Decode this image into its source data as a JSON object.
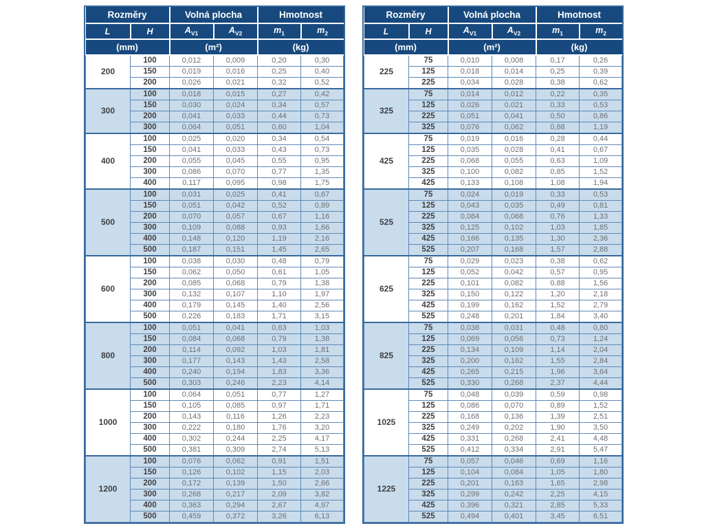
{
  "colors": {
    "header_bg": "#17497e",
    "outer_border": "#36689e",
    "row_border": "#5c87b4",
    "band_bg": "#c9dcec",
    "value_text": "#6d6e71",
    "bold_text": "#3f4042"
  },
  "header": {
    "groups": [
      {
        "label": "Rozměry",
        "unit": "(mm)"
      },
      {
        "label": "Volná plocha",
        "unit": "(m²)"
      },
      {
        "label": "Hmotnost",
        "unit": "(kg)"
      }
    ],
    "columns": [
      {
        "base": "L",
        "sub": ""
      },
      {
        "base": "H",
        "sub": ""
      },
      {
        "base": "A",
        "sub": "V1"
      },
      {
        "base": "A",
        "sub": "V2"
      },
      {
        "base": "m",
        "sub": "1"
      },
      {
        "base": "m",
        "sub": "2"
      }
    ]
  },
  "tables": [
    {
      "name": "left",
      "groups": [
        {
          "L": "200",
          "rows": [
            [
              "100",
              "0,012",
              "0,009",
              "0,20",
              "0,30"
            ],
            [
              "150",
              "0,019",
              "0,016",
              "0,25",
              "0,40"
            ],
            [
              "200",
              "0,026",
              "0,021",
              "0,32",
              "0,52"
            ]
          ]
        },
        {
          "L": "300",
          "rows": [
            [
              "100",
              "0,018",
              "0,015",
              "0,27",
              "0,42"
            ],
            [
              "150",
              "0,030",
              "0,024",
              "0,34",
              "0,57"
            ],
            [
              "200",
              "0,041",
              "0,033",
              "0,44",
              "0,73"
            ],
            [
              "300",
              "0,064",
              "0,051",
              "0,60",
              "1,04"
            ]
          ]
        },
        {
          "L": "400",
          "rows": [
            [
              "100",
              "0,025",
              "0,020",
              "0,34",
              "0,54"
            ],
            [
              "150",
              "0,041",
              "0,033",
              "0,43",
              "0,73"
            ],
            [
              "200",
              "0,055",
              "0,045",
              "0,55",
              "0,95"
            ],
            [
              "300",
              "0,086",
              "0,070",
              "0,77",
              "1,35"
            ],
            [
              "400",
              "0,117",
              "0,095",
              "0,98",
              "1,75"
            ]
          ]
        },
        {
          "L": "500",
          "rows": [
            [
              "100",
              "0,031",
              "0,025",
              "0,41",
              "0,67"
            ],
            [
              "150",
              "0,051",
              "0,042",
              "0,52",
              "0,89"
            ],
            [
              "200",
              "0,070",
              "0,057",
              "0,67",
              "1,16"
            ],
            [
              "300",
              "0,109",
              "0,088",
              "0,93",
              "1,66"
            ],
            [
              "400",
              "0,148",
              "0,120",
              "1,19",
              "2,16"
            ],
            [
              "500",
              "0,187",
              "0,151",
              "1,45",
              "2,65"
            ]
          ]
        },
        {
          "L": "600",
          "rows": [
            [
              "100",
              "0,038",
              "0,030",
              "0,48",
              "0,79"
            ],
            [
              "150",
              "0,062",
              "0,050",
              "0,61",
              "1,05"
            ],
            [
              "200",
              "0,085",
              "0,068",
              "0,79",
              "1,38"
            ],
            [
              "300",
              "0,132",
              "0,107",
              "1,10",
              "1,97"
            ],
            [
              "400",
              "0,179",
              "0,145",
              "1,40",
              "2,56"
            ],
            [
              "500",
              "0,226",
              "0,183",
              "1,71",
              "3,15"
            ]
          ]
        },
        {
          "L": "800",
          "rows": [
            [
              "100",
              "0,051",
              "0,041",
              "0,63",
              "1,03"
            ],
            [
              "150",
              "0,084",
              "0,068",
              "0,79",
              "1,38"
            ],
            [
              "200",
              "0,114",
              "0,092",
              "1,03",
              "1,81"
            ],
            [
              "300",
              "0,177",
              "0,143",
              "1,43",
              "2,58"
            ],
            [
              "400",
              "0,240",
              "0,194",
              "1,83",
              "3,36"
            ],
            [
              "500",
              "0,303",
              "0,246",
              "2,23",
              "4,14"
            ]
          ]
        },
        {
          "L": "1000",
          "rows": [
            [
              "100",
              "0,064",
              "0,051",
              "0,77",
              "1,27"
            ],
            [
              "150",
              "0,105",
              "0,085",
              "0,97",
              "1,71"
            ],
            [
              "200",
              "0,143",
              "0,116",
              "1,26",
              "2,23"
            ],
            [
              "300",
              "0,222",
              "0,180",
              "1,76",
              "3,20"
            ],
            [
              "400",
              "0,302",
              "0,244",
              "2,25",
              "4,17"
            ],
            [
              "500",
              "0,381",
              "0,309",
              "2,74",
              "5,13"
            ]
          ]
        },
        {
          "L": "1200",
          "rows": [
            [
              "100",
              "0,076",
              "0,062",
              "0,91",
              "1,51"
            ],
            [
              "150",
              "0,126",
              "0,102",
              "1,15",
              "2,03"
            ],
            [
              "200",
              "0,172",
              "0,139",
              "1,50",
              "2,66"
            ],
            [
              "300",
              "0,268",
              "0,217",
              "2,09",
              "3,82"
            ],
            [
              "400",
              "0,363",
              "0,294",
              "2,67",
              "4,97"
            ],
            [
              "500",
              "0,459",
              "0,372",
              "3,26",
              "6,13"
            ]
          ]
        }
      ]
    },
    {
      "name": "right",
      "groups": [
        {
          "L": "225",
          "rows": [
            [
              "75",
              "0,010",
              "0,008",
              "0,17",
              "0,26"
            ],
            [
              "125",
              "0,018",
              "0,014",
              "0,25",
              "0,39"
            ],
            [
              "225",
              "0,034",
              "0,028",
              "0,38",
              "0,62"
            ]
          ]
        },
        {
          "L": "325",
          "rows": [
            [
              "75",
              "0,014",
              "0,012",
              "0,22",
              "0,35"
            ],
            [
              "125",
              "0,026",
              "0,021",
              "0,33",
              "0,53"
            ],
            [
              "225",
              "0,051",
              "0,041",
              "0,50",
              "0,86"
            ],
            [
              "325",
              "0,076",
              "0,062",
              "0,68",
              "1,19"
            ]
          ]
        },
        {
          "L": "425",
          "rows": [
            [
              "75",
              "0,019",
              "0,016",
              "0,28",
              "0,44"
            ],
            [
              "125",
              "0,035",
              "0,028",
              "0,41",
              "0,67"
            ],
            [
              "225",
              "0,068",
              "0,055",
              "0,63",
              "1,09"
            ],
            [
              "325",
              "0,100",
              "0,082",
              "0,85",
              "1,52"
            ],
            [
              "425",
              "0,133",
              "0,108",
              "1,08",
              "1,94"
            ]
          ]
        },
        {
          "L": "525",
          "rows": [
            [
              "75",
              "0,024",
              "0,019",
              "0,33",
              "0,53"
            ],
            [
              "125",
              "0,043",
              "0,035",
              "0,49",
              "0,81"
            ],
            [
              "225",
              "0,084",
              "0,068",
              "0,76",
              "1,33"
            ],
            [
              "325",
              "0,125",
              "0,102",
              "1,03",
              "1,85"
            ],
            [
              "425",
              "0,166",
              "0,135",
              "1,30",
              "2,36"
            ],
            [
              "525",
              "0,207",
              "0,168",
              "1,57",
              "2,88"
            ]
          ]
        },
        {
          "L": "625",
          "rows": [
            [
              "75",
              "0,029",
              "0,023",
              "0,38",
              "0,62"
            ],
            [
              "125",
              "0,052",
              "0,042",
              "0,57",
              "0,95"
            ],
            [
              "225",
              "0,101",
              "0,082",
              "0,88",
              "1,56"
            ],
            [
              "325",
              "0,150",
              "0,122",
              "1,20",
              "2,18"
            ],
            [
              "425",
              "0,199",
              "0,162",
              "1,52",
              "2,79"
            ],
            [
              "525",
              "0,248",
              "0,201",
              "1,84",
              "3,40"
            ]
          ]
        },
        {
          "L": "825",
          "rows": [
            [
              "75",
              "0,038",
              "0,031",
              "0,48",
              "0,80"
            ],
            [
              "125",
              "0,069",
              "0,056",
              "0,73",
              "1,24"
            ],
            [
              "225",
              "0,134",
              "0,109",
              "1,14",
              "2,04"
            ],
            [
              "325",
              "0,200",
              "0,162",
              "1,55",
              "2,84"
            ],
            [
              "425",
              "0,265",
              "0,215",
              "1,96",
              "3,64"
            ],
            [
              "525",
              "0,330",
              "0,268",
              "2,37",
              "4,44"
            ]
          ]
        },
        {
          "L": "1025",
          "rows": [
            [
              "75",
              "0,048",
              "0,039",
              "0,59",
              "0,98"
            ],
            [
              "125",
              "0,086",
              "0,070",
              "0,89",
              "1,52"
            ],
            [
              "225",
              "0,168",
              "0,136",
              "1,39",
              "2,51"
            ],
            [
              "325",
              "0,249",
              "0,202",
              "1,90",
              "3,50"
            ],
            [
              "425",
              "0,331",
              "0,268",
              "2,41",
              "4,48"
            ],
            [
              "525",
              "0,412",
              "0,334",
              "2,91",
              "5,47"
            ]
          ]
        },
        {
          "L": "1225",
          "rows": [
            [
              "75",
              "0,057",
              "0,046",
              "0,69",
              "1,16"
            ],
            [
              "125",
              "0,104",
              "0,084",
              "1,05",
              "1,80"
            ],
            [
              "225",
              "0,201",
              "0,163",
              "1,65",
              "2,98"
            ],
            [
              "325",
              "0,299",
              "0,242",
              "2,25",
              "4,15"
            ],
            [
              "425",
              "0,396",
              "0,321",
              "2,85",
              "5,33"
            ],
            [
              "525",
              "0,494",
              "0,401",
              "3,45",
              "6,51"
            ]
          ]
        }
      ]
    }
  ]
}
